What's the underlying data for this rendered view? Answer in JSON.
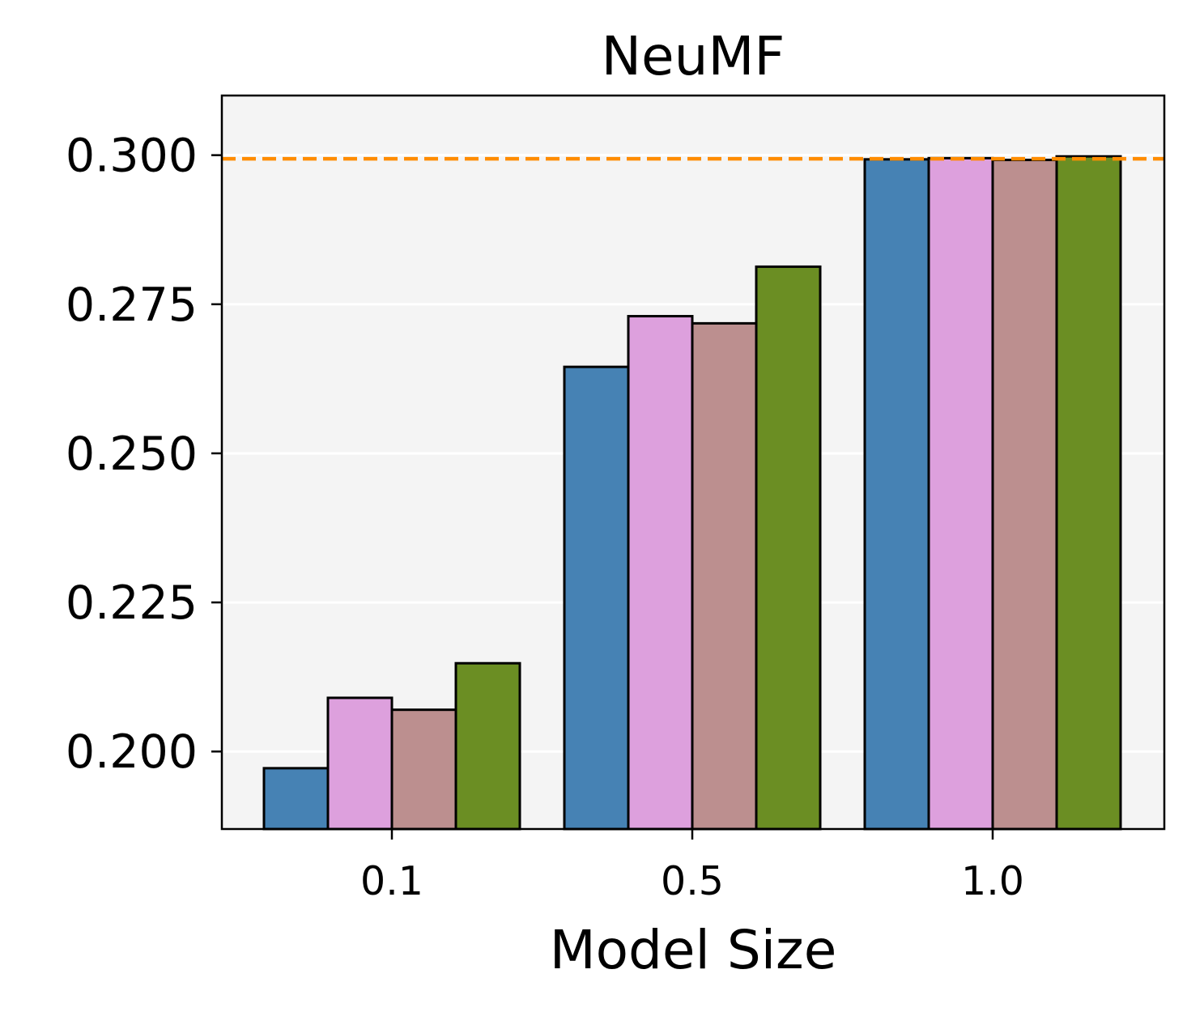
{
  "chart_data": {
    "type": "bar",
    "title": "NeuMF",
    "xlabel": "Model Size",
    "ylabel": "",
    "categories": [
      "0.1",
      "0.5",
      "1.0"
    ],
    "ylim": [
      0.187,
      0.31
    ],
    "yticks": [
      "0.200",
      "0.225",
      "0.250",
      "0.275",
      "0.300"
    ],
    "grid": "horizontal",
    "legend": "none",
    "series": [
      {
        "color": "#4682b4",
        "values": [
          0.1972,
          0.2645,
          0.2993
        ]
      },
      {
        "color": "#dda0dd",
        "values": [
          0.209,
          0.273,
          0.2995
        ]
      },
      {
        "color": "#bc8f8f",
        "values": [
          0.207,
          0.2718,
          0.2992
        ]
      },
      {
        "color": "#6b8e23",
        "values": [
          0.2148,
          0.2813,
          0.2998
        ]
      }
    ],
    "reference_line": {
      "value": 0.2994,
      "color": "#ff8c00",
      "style": "dashed"
    },
    "colors": {
      "plot_background": "#f4f4f4",
      "gridline": "#ffffff",
      "bar_edge": "#000000"
    }
  }
}
